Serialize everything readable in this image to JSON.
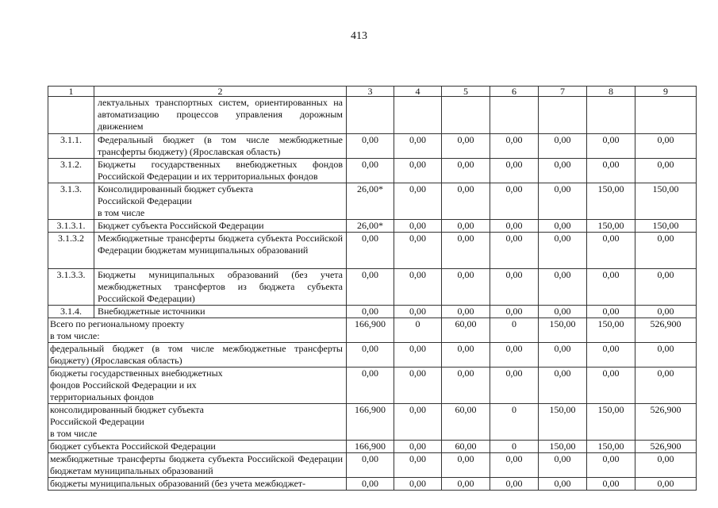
{
  "page_number": "413",
  "table": {
    "header": [
      "1",
      "2",
      "3",
      "4",
      "5",
      "6",
      "7",
      "8",
      "9"
    ],
    "rows": [
      {
        "code": "",
        "label": "лектуальных транспортных систем, ориентированных на автоматизацию процессов управления дорожным движением",
        "values": [
          "",
          "",
          "",
          "",
          "",
          "",
          ""
        ],
        "h": 47
      },
      {
        "code": "3.1.1.",
        "label": "Федеральный бюджет (в том числе межбюджетные трансферты бюджету) (Ярославская область)",
        "values": [
          "0,00",
          "0,00",
          "0,00",
          "0,00",
          "0,00",
          "0,00",
          "0,00"
        ],
        "h": 30
      },
      {
        "code": "3.1.2.",
        "label": "Бюджеты государственных внебюджетных фондов Российской Федерации и их территориальных фондов",
        "values": [
          "0,00",
          "0,00",
          "0,00",
          "0,00",
          "0,00",
          "0,00",
          "0,00"
        ],
        "h": 30
      },
      {
        "code": "3.1.3.",
        "label": "Консолидированный бюджет субъекта\nРоссийской Федерации\nв том числе",
        "values": [
          "26,00*",
          "0,00",
          "0,00",
          "0,00",
          "0,00",
          "150,00",
          "150,00"
        ],
        "h": 45
      },
      {
        "code": "3.1.3.1.",
        "label": "Бюджет субъекта  Российской Федерации",
        "values": [
          "26,00*",
          "0,00",
          "0,00",
          "0,00",
          "0,00",
          "150,00",
          "150,00"
        ],
        "h": 14
      },
      {
        "code": "3.1.3.2",
        "label": "Межбюджетные трансферты бюджета субъекта Российской Федерации бюджетам муниципальных образований",
        "values": [
          "0,00",
          "0,00",
          "0,00",
          "0,00",
          "0,00",
          "0,00",
          "0,00"
        ],
        "h": 46
      },
      {
        "code": "3.1.3.3.",
        "label": "Бюджеты муниципальных образований (без учета межбюджетных трансфертов из бюджета субъекта Российской Федерации)",
        "values": [
          "0,00",
          "0,00",
          "0,00",
          "0,00",
          "0,00",
          "0,00",
          "0,00"
        ],
        "h": 46
      },
      {
        "code": "3.1.4.",
        "label": "Внебюджетные источники",
        "values": [
          "0,00",
          "0,00",
          "0,00",
          "0,00",
          "0,00",
          "0,00",
          "0,00"
        ],
        "h": 14
      },
      {
        "span": true,
        "label": "Всего по региональному проекту\nв том числе:",
        "values": [
          "166,900",
          "0",
          "60,00",
          "0",
          "150,00",
          "150,00",
          "526,900"
        ],
        "h": 30
      },
      {
        "span": true,
        "label": "федеральный бюджет (в том числе межбюджетные трансферты бюджету) (Ярославская область)",
        "values": [
          "0,00",
          "0,00",
          "0,00",
          "0,00",
          "0,00",
          "0,00",
          "0,00"
        ],
        "h": 31
      },
      {
        "span": true,
        "label": "бюджеты государственных внебюджетных\nфондов Российской Федерации и их\nтерриториальных фондов",
        "values": [
          "0,00",
          "0,00",
          "0,00",
          "0,00",
          "0,00",
          "0,00",
          "0,00"
        ],
        "h": 45
      },
      {
        "span": true,
        "label": "консолидированный бюджет субъекта\nРоссийской Федерации\nв том числе",
        "values": [
          "166,900",
          "0,00",
          "60,00",
          "0",
          "150,00",
          "150,00",
          "526,900"
        ],
        "h": 46
      },
      {
        "span": true,
        "label": "бюджет субъекта  Российской Федерации",
        "values": [
          "166,900",
          "0,00",
          "60,00",
          "0",
          "150,00",
          "150,00",
          "526,900"
        ],
        "h": 14
      },
      {
        "span": true,
        "label": "межбюджетные трансферты бюджета субъекта Российской Федерации бюджетам муниципальных образований",
        "values": [
          "0,00",
          "0,00",
          "0,00",
          "0,00",
          "0,00",
          "0,00",
          "0,00"
        ],
        "h": 31
      },
      {
        "span": true,
        "label": "бюджеты муниципальных образований (без учета межбюджет-",
        "values": [
          "0,00",
          "0,00",
          "0,00",
          "0,00",
          "0,00",
          "0,00",
          "0,00"
        ],
        "h": 14
      }
    ]
  }
}
